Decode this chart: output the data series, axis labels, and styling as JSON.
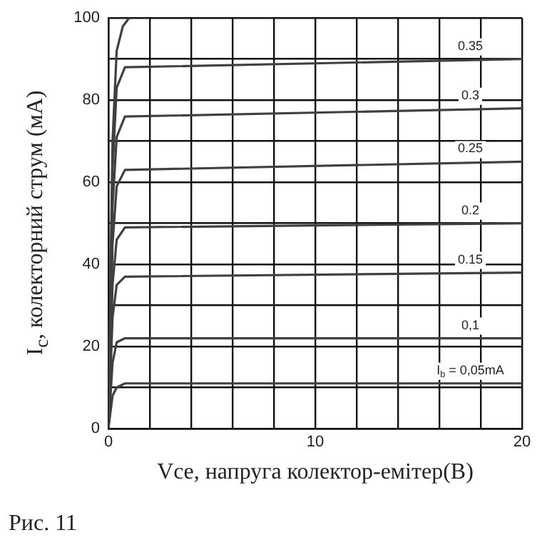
{
  "chart_data": {
    "type": "line",
    "xlabel": "Vce, напруга колектор-емітер(B)",
    "ylabel": "I$_{c}$, колекторний струм (мА)",
    "annotations": [
      "Рис. 11"
    ],
    "xlim": [
      0,
      20
    ],
    "ylim": [
      0,
      100
    ],
    "xticks": [
      0,
      {
        "value": 2,
        "label": null
      },
      {
        "value": 4,
        "label": null
      },
      {
        "value": 6,
        "label": null
      },
      {
        "value": 8,
        "label": null
      },
      10,
      {
        "value": 12,
        "label": null
      },
      {
        "value": 14,
        "label": null
      },
      {
        "value": 16,
        "label": null
      },
      {
        "value": 18,
        "label": null
      },
      20
    ],
    "yticks": [
      0,
      {
        "value": 10,
        "label": null
      },
      20,
      {
        "value": 30,
        "label": null
      },
      40,
      {
        "value": 50,
        "label": null
      },
      60,
      {
        "value": 70,
        "label": null
      },
      80,
      {
        "value": 90,
        "label": null
      },
      100
    ],
    "grid": true,
    "legend": false,
    "marker": "none",
    "line_style": "solid",
    "series": [
      {
        "color": "#404040",
        "x": [
          0,
          0.2,
          0.4,
          0.7,
          1
        ],
        "values": [
          0,
          70,
          92,
          98,
          100
        ]
      },
      {
        "name": "0.35",
        "color": "#404040",
        "x": [
          0,
          0.2,
          0.4,
          0.8,
          20
        ],
        "values": [
          0,
          63,
          83,
          88,
          90
        ]
      },
      {
        "name": "0.3",
        "color": "#404040",
        "x": [
          0,
          0.2,
          0.4,
          0.8,
          20
        ],
        "values": [
          0,
          54,
          71,
          76,
          78
        ]
      },
      {
        "name": "0.25",
        "color": "#404040",
        "x": [
          0,
          0.2,
          0.4,
          0.8,
          20
        ],
        "values": [
          0,
          45,
          59,
          63,
          65
        ]
      },
      {
        "name": "0.2",
        "color": "#404040",
        "x": [
          0,
          0.2,
          0.4,
          0.8,
          20
        ],
        "values": [
          0,
          35,
          46,
          49,
          50
        ]
      },
      {
        "name": "0.15",
        "color": "#404040",
        "x": [
          0,
          0.2,
          0.4,
          0.8,
          20
        ],
        "values": [
          0,
          27,
          35,
          37,
          38
        ]
      },
      {
        "name": "0,1",
        "color": "#404040",
        "x": [
          0,
          0.2,
          0.4,
          0.8,
          20
        ],
        "values": [
          0,
          16,
          21,
          22,
          22
        ]
      },
      {
        "name": "I$_{b}$ = 0,05mA",
        "color": "#404040",
        "x": [
          0,
          0.2,
          0.4,
          0.8,
          20
        ],
        "values": [
          0,
          8,
          10,
          11,
          11
        ]
      }
    ]
  }
}
